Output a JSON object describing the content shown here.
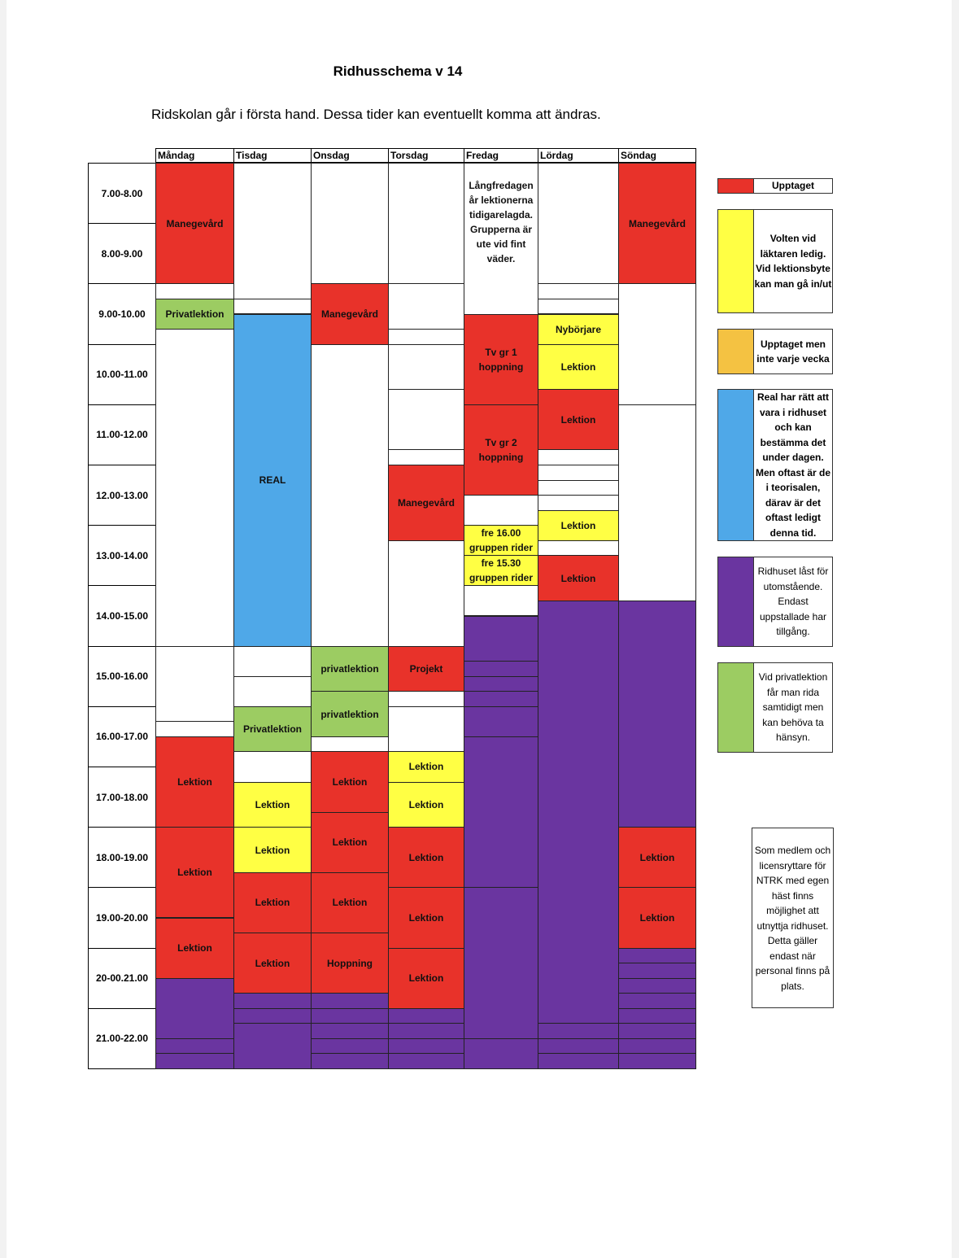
{
  "title": "Ridhusschema v 14",
  "subtitle": "Ridskolan går i första hand. Dessa tider kan eventuellt komma att ändras.",
  "colors": {
    "red": "#e8322a",
    "yellow": "#ffff44",
    "orange": "#f4c242",
    "blue": "#4fa8e8",
    "purple": "#6a35a0",
    "green": "#9ccc62",
    "white": "#ffffff"
  },
  "days": [
    "Måndag",
    "Tisdag",
    "Onsdag",
    "Torsdag",
    "Fredag",
    "Lördag",
    "Söndag"
  ],
  "times": [
    "7.00-8.00",
    "8.00-9.00",
    "9.00-10.00",
    "10.00-11.00",
    "11.00-12.00",
    "12.00-13.00",
    "13.00-14.00",
    "14.00-15.00",
    "15.00-16.00",
    "16.00-17.00",
    "17.00-18.00",
    "18.00-19.00",
    "19.00-20.00",
    "20-00.21.00",
    "21.00-22.00"
  ],
  "schedule": [
    [
      [
        7,
        9,
        "red",
        "Manegevård"
      ],
      [
        9,
        9.25,
        "white",
        ""
      ],
      [
        9.25,
        9.75,
        "green",
        "Privatlektion"
      ],
      [
        9.75,
        15,
        "white",
        ""
      ],
      [
        15,
        16.25,
        "white",
        ""
      ],
      [
        16.25,
        16.5,
        "white",
        ""
      ],
      [
        16.5,
        18,
        "red",
        "Lektion"
      ],
      [
        18,
        19.5,
        "red",
        "Lektion"
      ],
      [
        19.5,
        20.5,
        "red",
        "Lektion"
      ],
      [
        20.5,
        21.5,
        "purple",
        ""
      ],
      [
        21.5,
        21.75,
        "purple",
        ""
      ],
      [
        21.75,
        22,
        "purple",
        ""
      ]
    ],
    [
      [
        7,
        9.25,
        "white",
        ""
      ],
      [
        9.25,
        9.5,
        "white",
        ""
      ],
      [
        9.5,
        15,
        "blue",
        "REAL"
      ],
      [
        15,
        15.5,
        "white",
        ""
      ],
      [
        15.5,
        16,
        "white",
        ""
      ],
      [
        16,
        16.75,
        "green",
        "Privatlektion"
      ],
      [
        16.75,
        17.25,
        "white",
        ""
      ],
      [
        17.25,
        18,
        "yellow",
        "Lektion"
      ],
      [
        18,
        18.75,
        "yellow",
        "Lektion"
      ],
      [
        18.75,
        19.75,
        "red",
        "Lektion"
      ],
      [
        19.75,
        20.75,
        "red",
        "Lektion"
      ],
      [
        20.75,
        21,
        "purple",
        ""
      ],
      [
        21,
        21.25,
        "purple",
        ""
      ],
      [
        21.25,
        22,
        "purple",
        ""
      ]
    ],
    [
      [
        7,
        9,
        "white",
        ""
      ],
      [
        9,
        10,
        "red",
        "Manegevård"
      ],
      [
        10,
        15,
        "white",
        ""
      ],
      [
        15,
        15.75,
        "green",
        "privatlektion"
      ],
      [
        15.75,
        16.5,
        "green",
        "privatlektion"
      ],
      [
        16.5,
        16.75,
        "white",
        ""
      ],
      [
        16.75,
        17.75,
        "red",
        "Lektion"
      ],
      [
        17.75,
        18.75,
        "red",
        "Lektion"
      ],
      [
        18.75,
        19.75,
        "red",
        "Lektion"
      ],
      [
        19.75,
        20.75,
        "red",
        "Hoppning"
      ],
      [
        20.75,
        21,
        "purple",
        ""
      ],
      [
        21,
        21.25,
        "purple",
        ""
      ],
      [
        21.25,
        21.5,
        "purple",
        ""
      ],
      [
        21.5,
        21.75,
        "purple",
        ""
      ],
      [
        21.75,
        22,
        "purple",
        ""
      ]
    ],
    [
      [
        7,
        9,
        "white",
        ""
      ],
      [
        9,
        9.75,
        "white",
        ""
      ],
      [
        9.75,
        10,
        "white",
        ""
      ],
      [
        10,
        10.75,
        "white",
        ""
      ],
      [
        10.75,
        11.75,
        "white",
        ""
      ],
      [
        11.75,
        12,
        "white",
        ""
      ],
      [
        12,
        13.25,
        "red",
        "Manegevård"
      ],
      [
        13.25,
        15,
        "white",
        ""
      ],
      [
        15,
        15.75,
        "red",
        "Projekt"
      ],
      [
        15.75,
        16,
        "white",
        ""
      ],
      [
        16,
        16.75,
        "white",
        ""
      ],
      [
        16.75,
        17.25,
        "yellow",
        "Lektion"
      ],
      [
        17.25,
        18,
        "yellow",
        "Lektion"
      ],
      [
        18,
        19,
        "red",
        "Lektion"
      ],
      [
        19,
        20,
        "red",
        "Lektion"
      ],
      [
        20,
        21,
        "red",
        "Lektion"
      ],
      [
        21,
        21.25,
        "purple",
        ""
      ],
      [
        21.25,
        21.5,
        "purple",
        ""
      ],
      [
        21.5,
        21.75,
        "purple",
        ""
      ],
      [
        21.75,
        22,
        "purple",
        ""
      ]
    ],
    [
      [
        7,
        9.5,
        "white",
        "Långfredagen\når lektionerna\ntidigarelagda.\nGrupperna är\nute vid fint\nväder."
      ],
      [
        9.5,
        11,
        "red",
        "Tv gr 1\nhoppning"
      ],
      [
        11,
        12.5,
        "red",
        "Tv gr 2\nhoppning"
      ],
      [
        12.5,
        13,
        "white",
        ""
      ],
      [
        13,
        13.5,
        "yellow",
        "fre 16.00\ngruppen rider"
      ],
      [
        13.5,
        14,
        "yellow",
        "fre 15.30\ngruppen rider"
      ],
      [
        14,
        14.5,
        "white",
        ""
      ],
      [
        14.5,
        15.25,
        "purple",
        ""
      ],
      [
        15.25,
        15.5,
        "purple",
        ""
      ],
      [
        15.5,
        15.75,
        "purple",
        ""
      ],
      [
        15.75,
        16,
        "purple",
        ""
      ],
      [
        16,
        16.5,
        "purple",
        ""
      ],
      [
        16.5,
        19,
        "purple",
        ""
      ],
      [
        19,
        21.5,
        "purple",
        ""
      ],
      [
        21.5,
        22,
        "purple",
        ""
      ]
    ],
    [
      [
        7,
        9,
        "white",
        ""
      ],
      [
        9,
        9.25,
        "white",
        ""
      ],
      [
        9.25,
        9.5,
        "white",
        ""
      ],
      [
        9.5,
        10,
        "yellow",
        "Nybörjare"
      ],
      [
        10,
        10.75,
        "yellow",
        "Lektion"
      ],
      [
        10.75,
        11.75,
        "red",
        "Lektion"
      ],
      [
        11.75,
        12,
        "white",
        ""
      ],
      [
        12,
        12.25,
        "white",
        ""
      ],
      [
        12.25,
        12.5,
        "white",
        ""
      ],
      [
        12.5,
        12.75,
        "white",
        ""
      ],
      [
        12.75,
        13.25,
        "yellow",
        "Lektion"
      ],
      [
        13.25,
        13.5,
        "white",
        ""
      ],
      [
        13.5,
        14.25,
        "red",
        "Lektion"
      ],
      [
        14.25,
        21.25,
        "purple",
        ""
      ],
      [
        21.25,
        21.5,
        "purple",
        ""
      ],
      [
        21.5,
        21.75,
        "purple",
        ""
      ],
      [
        21.75,
        22,
        "purple",
        ""
      ]
    ],
    [
      [
        7,
        9,
        "red",
        "Manegevård"
      ],
      [
        9,
        11,
        "white",
        ""
      ],
      [
        11,
        14.25,
        "white",
        ""
      ],
      [
        14.25,
        18,
        "purple",
        ""
      ],
      [
        18,
        19,
        "red",
        "Lektion"
      ],
      [
        19,
        20,
        "red",
        "Lektion"
      ],
      [
        20,
        20.25,
        "purple",
        ""
      ],
      [
        20.25,
        20.5,
        "purple",
        ""
      ],
      [
        20.5,
        20.75,
        "purple",
        ""
      ],
      [
        20.75,
        21,
        "purple",
        ""
      ],
      [
        21,
        21.25,
        "purple",
        ""
      ],
      [
        21.25,
        21.5,
        "purple",
        ""
      ],
      [
        21.5,
        21.75,
        "purple",
        ""
      ],
      [
        21.75,
        22,
        "purple",
        ""
      ]
    ]
  ],
  "legend": [
    {
      "color": "red",
      "text": "Upptaget",
      "bold": true
    },
    {
      "color": "yellow",
      "text": "Volten vid läktaren ledig. Vid lektionsbyte kan man gå in/ut",
      "bold": true
    },
    {
      "color": "orange",
      "text": "Upptaget men inte varje vecka",
      "bold": true
    },
    {
      "color": "blue",
      "text": "Real har rätt att vara i ridhuset och kan bestämma det under dagen. Men oftast är de i teorisalen, därav är det oftast ledigt denna tid.",
      "bold": true
    },
    {
      "color": "purple",
      "text": "Ridhuset låst för utomstående. Endast uppstallade har tillgång.",
      "bold": false
    },
    {
      "color": "green",
      "text": "Vid privatlektion får man rida samtidigt men kan behöva ta hänsyn.",
      "bold": false
    }
  ],
  "note": "Som medlem och licensryttare för NTRK med egen häst finns möjlighet att utnyttja ridhuset. Detta gäller endast när personal finns på plats."
}
